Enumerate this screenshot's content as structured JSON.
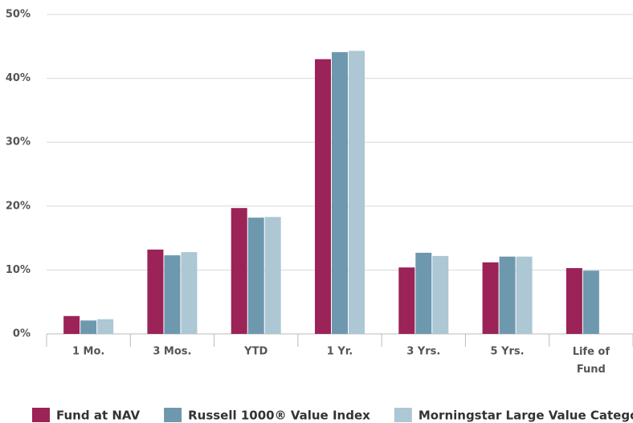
{
  "chart_data": {
    "type": "bar",
    "categories": [
      "1 Mo.",
      "3 Mos.",
      "YTD",
      "1 Yr.",
      "3 Yrs.",
      "5 Yrs.",
      "Life of Fund"
    ],
    "series": [
      {
        "name": "Fund at NAV",
        "color": "#9b2357",
        "values": [
          2.8,
          13.2,
          19.7,
          43.0,
          10.4,
          11.2,
          10.3
        ]
      },
      {
        "name": "Russell 1000® Value Index",
        "color": "#6e98ae",
        "values": [
          2.1,
          12.3,
          18.2,
          44.1,
          12.7,
          12.1,
          9.9
        ]
      },
      {
        "name": "Morningstar Large Value Category",
        "color": "#adc7d4",
        "values": [
          2.3,
          12.8,
          18.3,
          44.3,
          12.2,
          12.1,
          null
        ]
      }
    ],
    "ylim": [
      0,
      50
    ],
    "yticks": [
      {
        "value": 0,
        "label": "0%"
      },
      {
        "value": 10,
        "label": "10%"
      },
      {
        "value": 20,
        "label": "20%"
      },
      {
        "value": 30,
        "label": "30%"
      },
      {
        "value": 40,
        "label": "40%"
      },
      {
        "value": 50,
        "label": "50%"
      }
    ],
    "grid": true,
    "legend": "bottom"
  }
}
